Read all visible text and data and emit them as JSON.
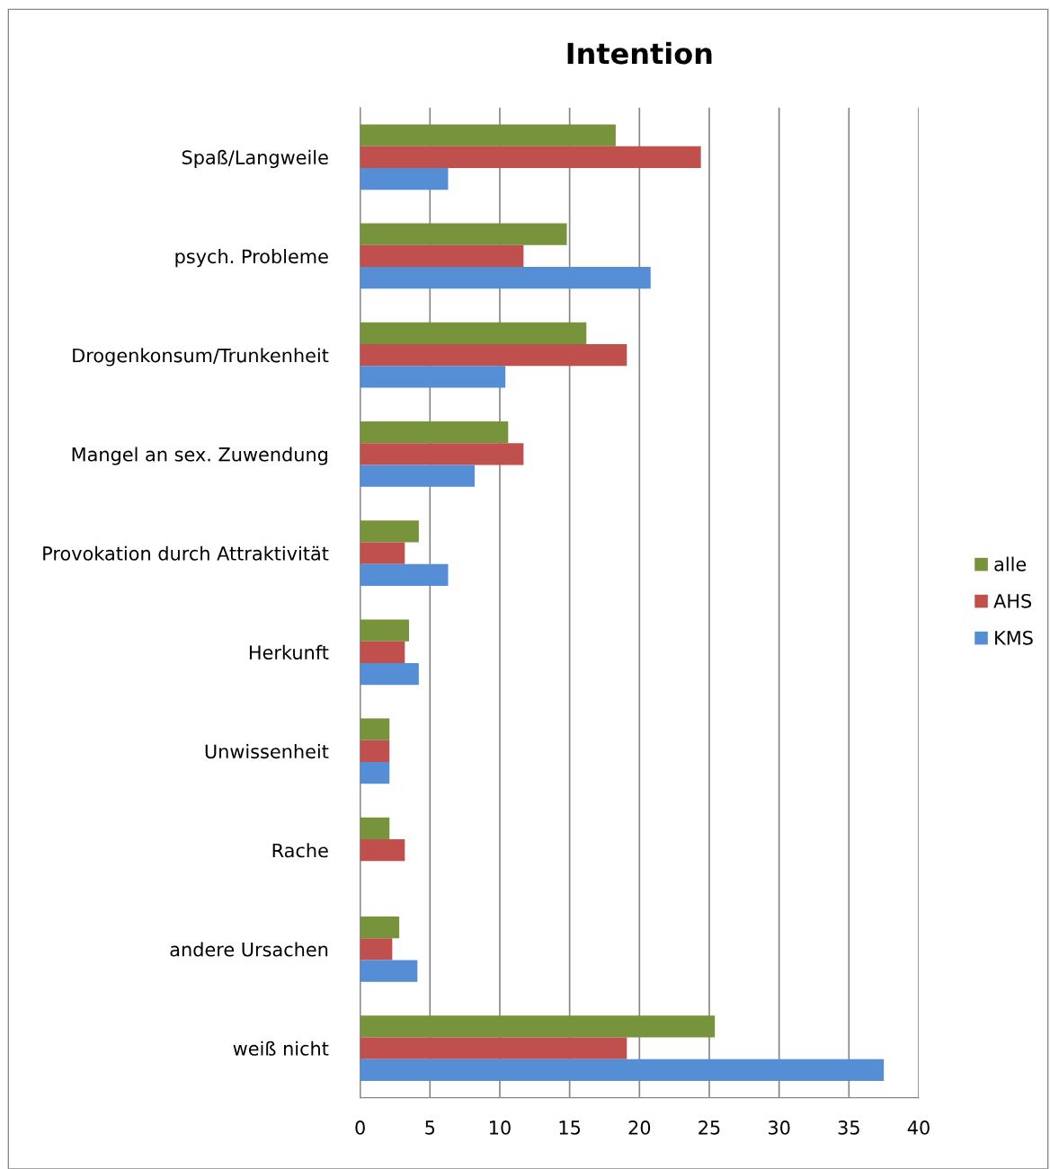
{
  "chart_data": {
    "type": "bar",
    "orientation": "horizontal",
    "title": "Intention",
    "categories": [
      "Spaß/Langweile",
      "psych. Probleme",
      "Drogenkonsum/Trunkenheit",
      "Mangel an sex. Zuwendung",
      "Provokation durch Attraktivität",
      "Herkunft",
      "Unwissenheit",
      "Rache",
      "andere Ursachen",
      "weiß nicht"
    ],
    "series": [
      {
        "name": "alle",
        "color": "#77933c",
        "values": [
          18.3,
          14.8,
          16.2,
          10.6,
          4.2,
          3.5,
          2.1,
          2.1,
          2.8,
          25.4
        ]
      },
      {
        "name": "AHS",
        "color": "#c0504d",
        "values": [
          24.4,
          11.7,
          19.1,
          11.7,
          3.2,
          3.2,
          2.1,
          3.2,
          2.3,
          19.1
        ]
      },
      {
        "name": "KMS",
        "color": "#558ed5",
        "values": [
          6.3,
          20.8,
          10.4,
          8.2,
          6.3,
          4.2,
          2.1,
          null,
          4.1,
          37.5
        ]
      }
    ],
    "xlim": [
      0,
      40
    ],
    "xticks": [
      0,
      5,
      10,
      15,
      20,
      25,
      30,
      35,
      40
    ],
    "grid": "x",
    "legend": "right"
  }
}
